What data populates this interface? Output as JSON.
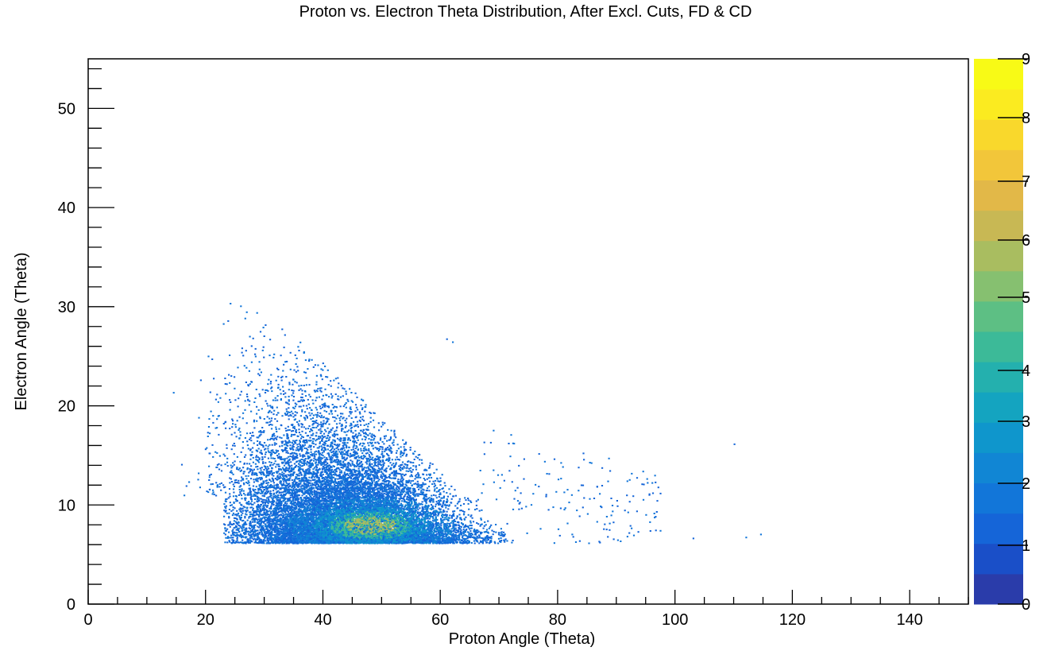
{
  "chart_data": {
    "type": "heatmap",
    "title": "Proton vs. Electron Theta Distribution, After Excl. Cuts, FD & CD",
    "xlabel": "Proton Angle (Theta)",
    "ylabel": "Electron Angle (Theta)",
    "xlim": [
      0,
      150
    ],
    "ylim": [
      0,
      55
    ],
    "x_ticks": [
      0,
      20,
      40,
      60,
      80,
      100,
      120,
      140
    ],
    "y_ticks": [
      0,
      10,
      20,
      30,
      40,
      50
    ],
    "colorbar": {
      "range": [
        0,
        9
      ],
      "ticks": [
        0,
        1,
        2,
        3,
        4,
        5,
        6,
        7,
        8,
        9
      ],
      "palette": [
        "#2a3caa",
        "#1a4fc8",
        "#1565d8",
        "#1276d9",
        "#1186d4",
        "#0f96cc",
        "#14a4c0",
        "#24b0ae",
        "#3cba98",
        "#5dbf84",
        "#86c070",
        "#a9bd60",
        "#c8b854",
        "#e2b848",
        "#f2c63a",
        "#f9d82c",
        "#fbeb20",
        "#f8fa16"
      ]
    },
    "cluster": {
      "dense_core": {
        "x": [
          38,
          58
        ],
        "y": [
          6.5,
          10
        ]
      },
      "main_region": {
        "x": [
          22,
          68
        ],
        "y": [
          6.2,
          30
        ]
      },
      "y_floor": 6.2,
      "peak_bin": {
        "x": 47,
        "y": 7.5,
        "count": 4
      },
      "outliers": [
        [
          103,
          6.7
        ],
        [
          112,
          6.8
        ],
        [
          114.5,
          7.1
        ],
        [
          110,
          16.2
        ],
        [
          62,
          26.5
        ],
        [
          61,
          26.8
        ],
        [
          90,
          10.5
        ],
        [
          96,
          12.3
        ]
      ]
    },
    "grid": false,
    "legend": "none"
  }
}
